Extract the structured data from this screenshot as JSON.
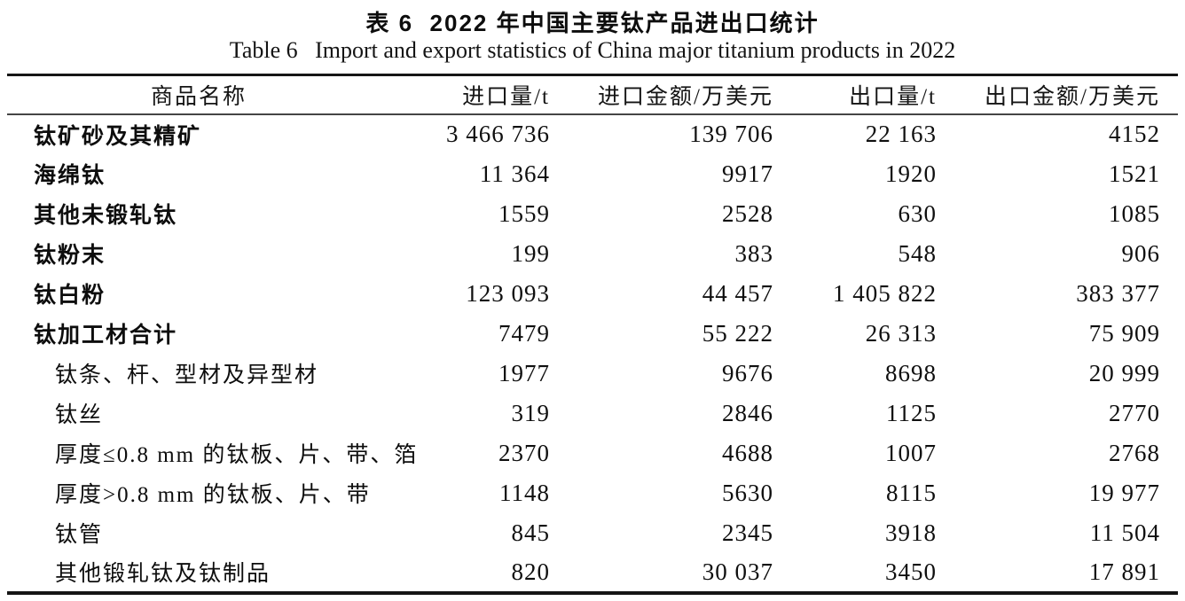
{
  "page": {
    "title_cn": "表 6  2022 年中国主要钛产品进出口统计",
    "title_en": "Table 6   Import and export statistics of China major titanium products in 2022"
  },
  "table": {
    "columns": [
      "商品名称",
      "进口量/t",
      "进口金额/万美元",
      "出口量/t",
      "出口金额/万美元"
    ],
    "rows": [
      {
        "name": "钛矿砂及其精矿",
        "level": "main",
        "import_qty": "3 466 736",
        "import_value": "139 706",
        "export_qty": "22 163",
        "export_value": "4152"
      },
      {
        "name": "海绵钛",
        "level": "main",
        "import_qty": "11 364",
        "import_value": "9917",
        "export_qty": "1920",
        "export_value": "1521"
      },
      {
        "name": "其他未锻轧钛",
        "level": "main",
        "import_qty": "1559",
        "import_value": "2528",
        "export_qty": "630",
        "export_value": "1085"
      },
      {
        "name": "钛粉末",
        "level": "main",
        "import_qty": "199",
        "import_value": "383",
        "export_qty": "548",
        "export_value": "906"
      },
      {
        "name": "钛白粉",
        "level": "main",
        "import_qty": "123 093",
        "import_value": "44 457",
        "export_qty": "1 405 822",
        "export_value": "383 377"
      },
      {
        "name": "钛加工材合计",
        "level": "main",
        "import_qty": "7479",
        "import_value": "55 222",
        "export_qty": "26 313",
        "export_value": "75 909"
      },
      {
        "name": "钛条、杆、型材及异型材",
        "level": "sub",
        "import_qty": "1977",
        "import_value": "9676",
        "export_qty": "8698",
        "export_value": "20 999"
      },
      {
        "name": "钛丝",
        "level": "sub",
        "import_qty": "319",
        "import_value": "2846",
        "export_qty": "1125",
        "export_value": "2770"
      },
      {
        "name": "厚度≤0.8 mm 的钛板、片、带、箔",
        "level": "sub",
        "import_qty": "2370",
        "import_value": "4688",
        "export_qty": "1007",
        "export_value": "2768"
      },
      {
        "name": "厚度>0.8 mm 的钛板、片、带",
        "level": "sub",
        "import_qty": "1148",
        "import_value": "5630",
        "export_qty": "8115",
        "export_value": "19 977"
      },
      {
        "name": "钛管",
        "level": "sub",
        "import_qty": "845",
        "import_value": "2345",
        "export_qty": "3918",
        "export_value": "11 504"
      },
      {
        "name": "其他锻轧钛及钛制品",
        "level": "sub",
        "import_qty": "820",
        "import_value": "30 037",
        "export_qty": "3450",
        "export_value": "17 891"
      }
    ]
  }
}
